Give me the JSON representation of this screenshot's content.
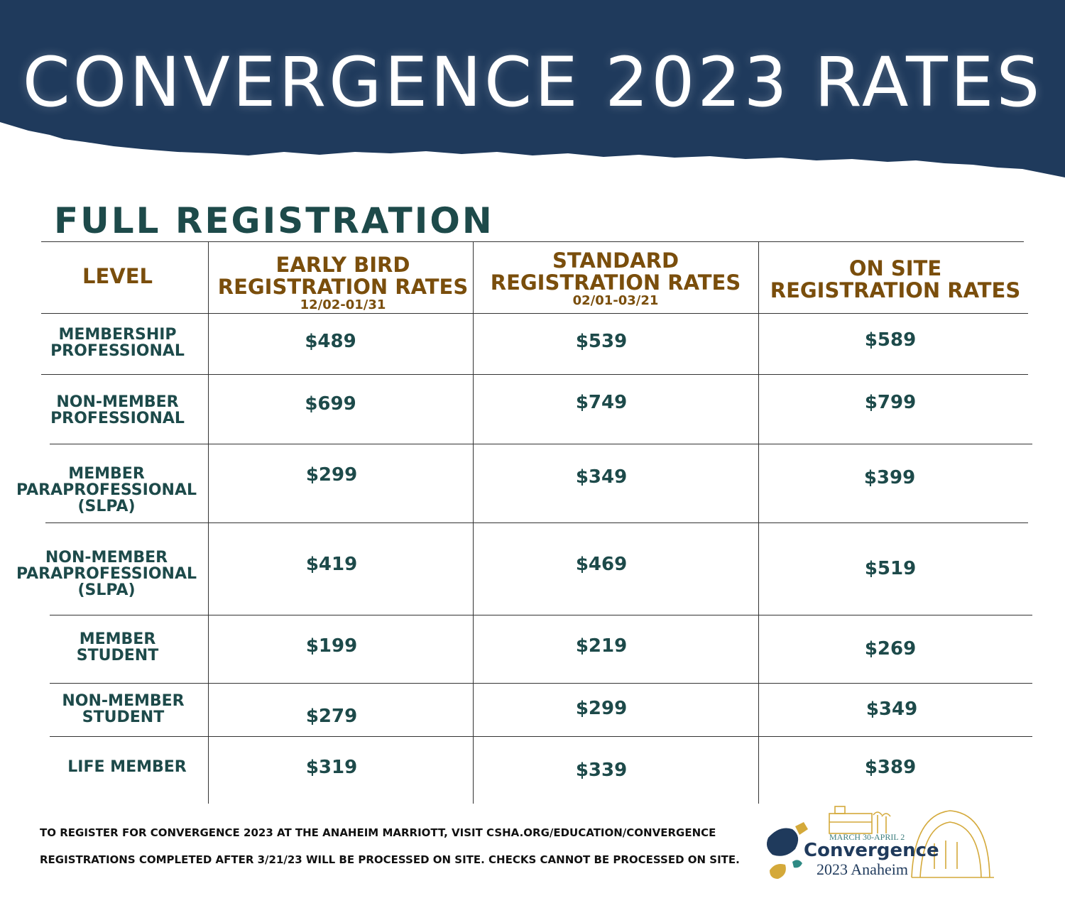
{
  "header": {
    "title": "CONVERGENCE 2023 RATES"
  },
  "section": {
    "title": "FULL REGISTRATION"
  },
  "table": {
    "headers": {
      "level": "LEVEL",
      "early": {
        "line1": "EARLY BIRD",
        "line2": "REGISTRATION RATES",
        "dates": "12/02-01/31"
      },
      "standard": {
        "line1": "STANDARD",
        "line2": "REGISTRATION RATES",
        "dates": "02/01-03/21"
      },
      "onsite": {
        "line1": "ON SITE",
        "line2": "REGISTRATION RATES"
      }
    },
    "rows": [
      {
        "level": [
          "MEMBERSHIP",
          "PROFESSIONAL"
        ],
        "early": "$489",
        "standard": "$539",
        "onsite": "$589"
      },
      {
        "level": [
          "NON-MEMBER",
          "PROFESSIONAL"
        ],
        "early": "$699",
        "standard": "$749",
        "onsite": "$799"
      },
      {
        "level": [
          "MEMBER",
          "PARAPROFESSIONAL",
          "(SLPA)"
        ],
        "early": "$299",
        "standard": "$349",
        "onsite": "$399"
      },
      {
        "level": [
          "NON-MEMBER",
          "PARAPROFESSIONAL",
          "(SLPA)"
        ],
        "early": "$419",
        "standard": "$469",
        "onsite": "$519"
      },
      {
        "level": [
          "MEMBER",
          "STUDENT"
        ],
        "early": "$199",
        "standard": "$219",
        "onsite": "$269"
      },
      {
        "level": [
          "NON-MEMBER",
          "STUDENT"
        ],
        "early": "$279",
        "standard": "$299",
        "onsite": "$349"
      },
      {
        "level": [
          "LIFE MEMBER"
        ],
        "early": "$319",
        "standard": "$339",
        "onsite": "$389"
      }
    ]
  },
  "footer": {
    "line1": "TO REGISTER FOR CONVERGENCE 2023 AT THE ANAHEIM MARRIOTT, VISIT CSHA.ORG/EDUCATION/CONVERGENCE",
    "line2": "REGISTRATIONS COMPLETED AFTER 3/21/23 WILL BE PROCESSED ON SITE.  CHECKS CANNOT BE PROCESSED ON SITE."
  },
  "logo": {
    "dates": "MARCH 30-APRIL 2",
    "name": "Convergence",
    "place": "2023 Anaheim"
  },
  "colors": {
    "banner": "#1f3a5c",
    "heading_text": "#7a4e0c",
    "body_text": "#1d4a4a",
    "logo_gold": "#d4a93a",
    "logo_teal": "#2e8a84"
  }
}
